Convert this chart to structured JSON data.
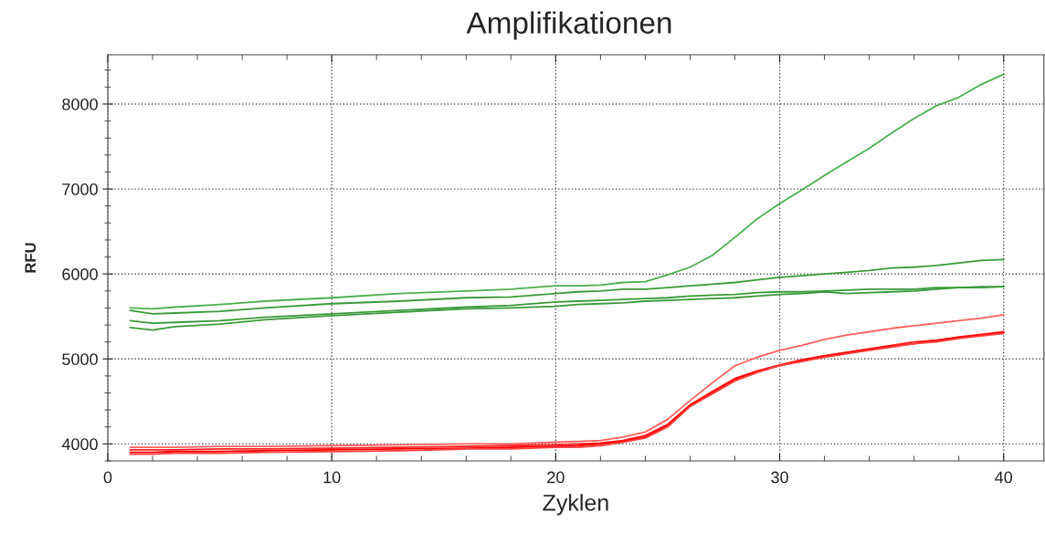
{
  "chart_data": {
    "type": "line",
    "title": "Amplifikationen",
    "xlabel": "Zyklen",
    "ylabel": "RFU",
    "x": [
      1,
      2,
      3,
      5,
      7,
      10,
      13,
      16,
      18,
      20,
      21,
      22,
      23,
      24,
      25,
      26,
      27,
      28,
      29,
      30,
      31,
      32,
      33,
      34,
      35,
      36,
      37,
      38,
      39,
      40
    ],
    "xlim": [
      0,
      41.8
    ],
    "xticks": [
      0,
      10,
      20,
      30,
      40
    ],
    "ylim": [
      3800,
      8580
    ],
    "yticks": [
      4000,
      5000,
      6000,
      7000,
      8000
    ],
    "grid": true,
    "series": [
      {
        "color": "#4caf50",
        "values": [
          5600,
          5590,
          5610,
          5640,
          5680,
          5720,
          5770,
          5800,
          5820,
          5860,
          5860,
          5870,
          5900,
          5910,
          5990,
          6080,
          6220,
          6430,
          6650,
          6830,
          6990,
          7160,
          7320,
          7480,
          7660,
          7830,
          7980,
          8080,
          8230,
          8350
        ]
      },
      {
        "color": "#3a9a3a",
        "values": [
          5570,
          5530,
          5540,
          5560,
          5600,
          5650,
          5680,
          5720,
          5730,
          5770,
          5790,
          5800,
          5820,
          5820,
          5840,
          5860,
          5880,
          5900,
          5930,
          5960,
          5980,
          6000,
          6020,
          6040,
          6070,
          6080,
          6100,
          6130,
          6160,
          6170
        ]
      },
      {
        "color": "#3a9a3a",
        "values": [
          5450,
          5420,
          5430,
          5450,
          5490,
          5530,
          5570,
          5610,
          5630,
          5670,
          5680,
          5690,
          5700,
          5710,
          5720,
          5740,
          5750,
          5760,
          5780,
          5790,
          5790,
          5800,
          5810,
          5820,
          5820,
          5820,
          5840,
          5840,
          5850,
          5850
        ]
      },
      {
        "color": "#3a9a3a",
        "values": [
          5370,
          5340,
          5380,
          5410,
          5460,
          5510,
          5550,
          5590,
          5600,
          5620,
          5640,
          5650,
          5660,
          5680,
          5690,
          5700,
          5710,
          5720,
          5740,
          5760,
          5770,
          5790,
          5770,
          5780,
          5790,
          5800,
          5820,
          5840,
          5840,
          5850
        ]
      },
      {
        "color": "#ff6060",
        "values": [
          3960,
          3960,
          3960,
          3970,
          3970,
          3980,
          3990,
          4000,
          4000,
          4020,
          4030,
          4040,
          4080,
          4140,
          4290,
          4510,
          4720,
          4920,
          5020,
          5100,
          5160,
          5230,
          5280,
          5320,
          5360,
          5390,
          5420,
          5450,
          5480,
          5520
        ]
      },
      {
        "color": "#ff2020",
        "values": [
          3930,
          3930,
          3930,
          3940,
          3940,
          3950,
          3960,
          3970,
          3980,
          3990,
          4000,
          4010,
          4040,
          4100,
          4230,
          4460,
          4620,
          4770,
          4860,
          4930,
          4990,
          5040,
          5080,
          5120,
          5160,
          5200,
          5220,
          5260,
          5290,
          5320
        ]
      },
      {
        "color": "#ff0000",
        "values": [
          3900,
          3900,
          3910,
          3910,
          3920,
          3930,
          3940,
          3950,
          3960,
          3970,
          3980,
          4000,
          4030,
          4080,
          4220,
          4450,
          4600,
          4760,
          4850,
          4920,
          4980,
          5030,
          5070,
          5110,
          5150,
          5180,
          5220,
          5250,
          5280,
          5310
        ]
      },
      {
        "color": "#ff4040",
        "values": [
          3880,
          3880,
          3890,
          3890,
          3900,
          3910,
          3920,
          3940,
          3940,
          3960,
          3960,
          3980,
          4020,
          4070,
          4200,
          4440,
          4590,
          4740,
          4840,
          4920,
          4970,
          5020,
          5060,
          5100,
          5140,
          5180,
          5200,
          5240,
          5270,
          5300
        ]
      }
    ]
  }
}
